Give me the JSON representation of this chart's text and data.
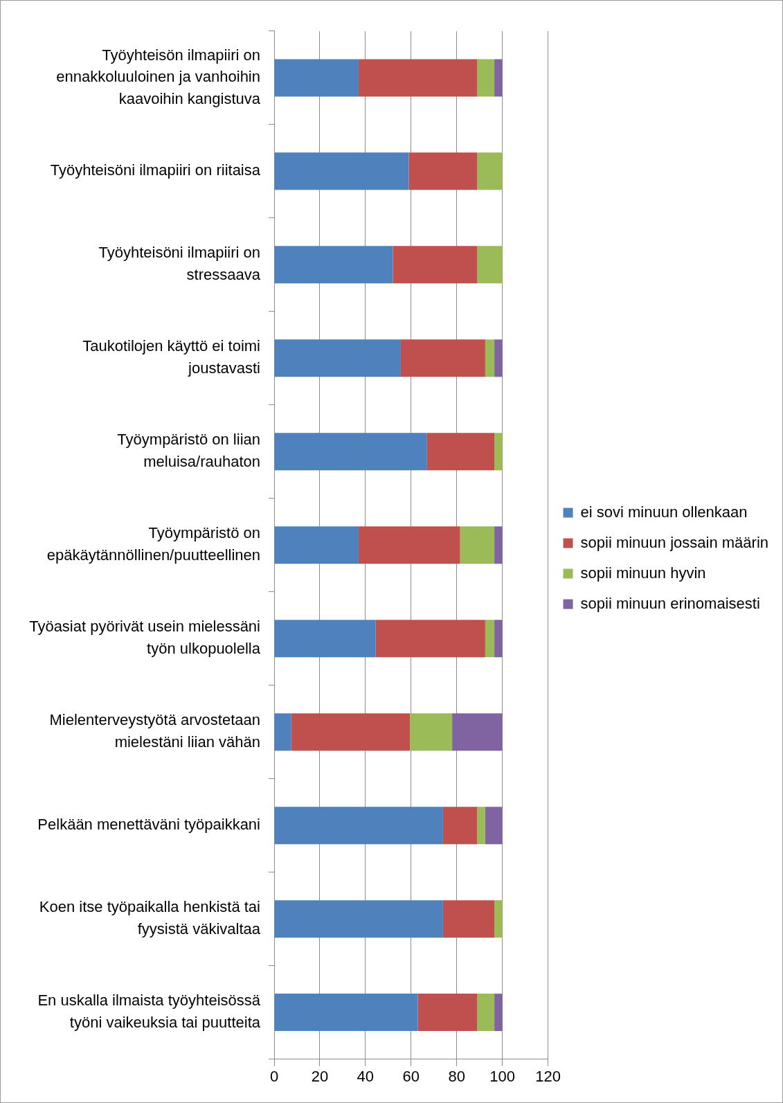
{
  "chart_data": {
    "type": "bar",
    "orientation": "horizontal",
    "stacked": true,
    "categories": [
      "Työyhteisön ilmapiiri on ennakkoluuloinen ja vanhoihin kaavoihin kangistuva",
      "Työyhteisöni ilmapiiri on riitaisa",
      "Työyhteisöni ilmapiiri on stressaava",
      "Taukotilojen käyttö ei toimi joustavasti",
      "Työympäristö on liian meluisa/rauhaton",
      "Työympäristö on epäkäytännöllinen/puutteellinen",
      "Työasiat pyörivät usein mielessäni työn ulkopuolella",
      "Mielenterveystyötä arvostetaan mielestäni liian vähän",
      "Pelkään menettäväni työpaikkani",
      "Koen itse työpaikalla henkistä tai fyysistä väkivaltaa",
      "En uskalla ilmaista työyhteisössä työni vaikeuksia tai puutteita"
    ],
    "series": [
      {
        "name": "ei sovi minuun ollenkaan",
        "color": "#4f81bd",
        "values": [
          37,
          59,
          52,
          55.5,
          67,
          37,
          44.5,
          7.5,
          74,
          74,
          63
        ]
      },
      {
        "name": "sopii minuun jossain määrin",
        "color": "#c0504d",
        "values": [
          52,
          30,
          37,
          37,
          29.5,
          44.5,
          48,
          52,
          15,
          22.5,
          26
        ]
      },
      {
        "name": "sopii minuun hyvin",
        "color": "#9bbb59",
        "values": [
          7.5,
          11,
          11,
          4,
          3.5,
          15,
          4,
          18.5,
          3.5,
          3.5,
          7.5
        ]
      },
      {
        "name": "sopii minuun erinomaisesti",
        "color": "#8064a2",
        "values": [
          3.5,
          null,
          null,
          3.5,
          null,
          3.5,
          3.5,
          22,
          7.5,
          null,
          3.5
        ]
      }
    ],
    "xlim": [
      0,
      120
    ],
    "xticks": [
      0,
      20,
      40,
      60,
      80,
      100,
      120
    ],
    "grid": "x",
    "legend": "right"
  }
}
